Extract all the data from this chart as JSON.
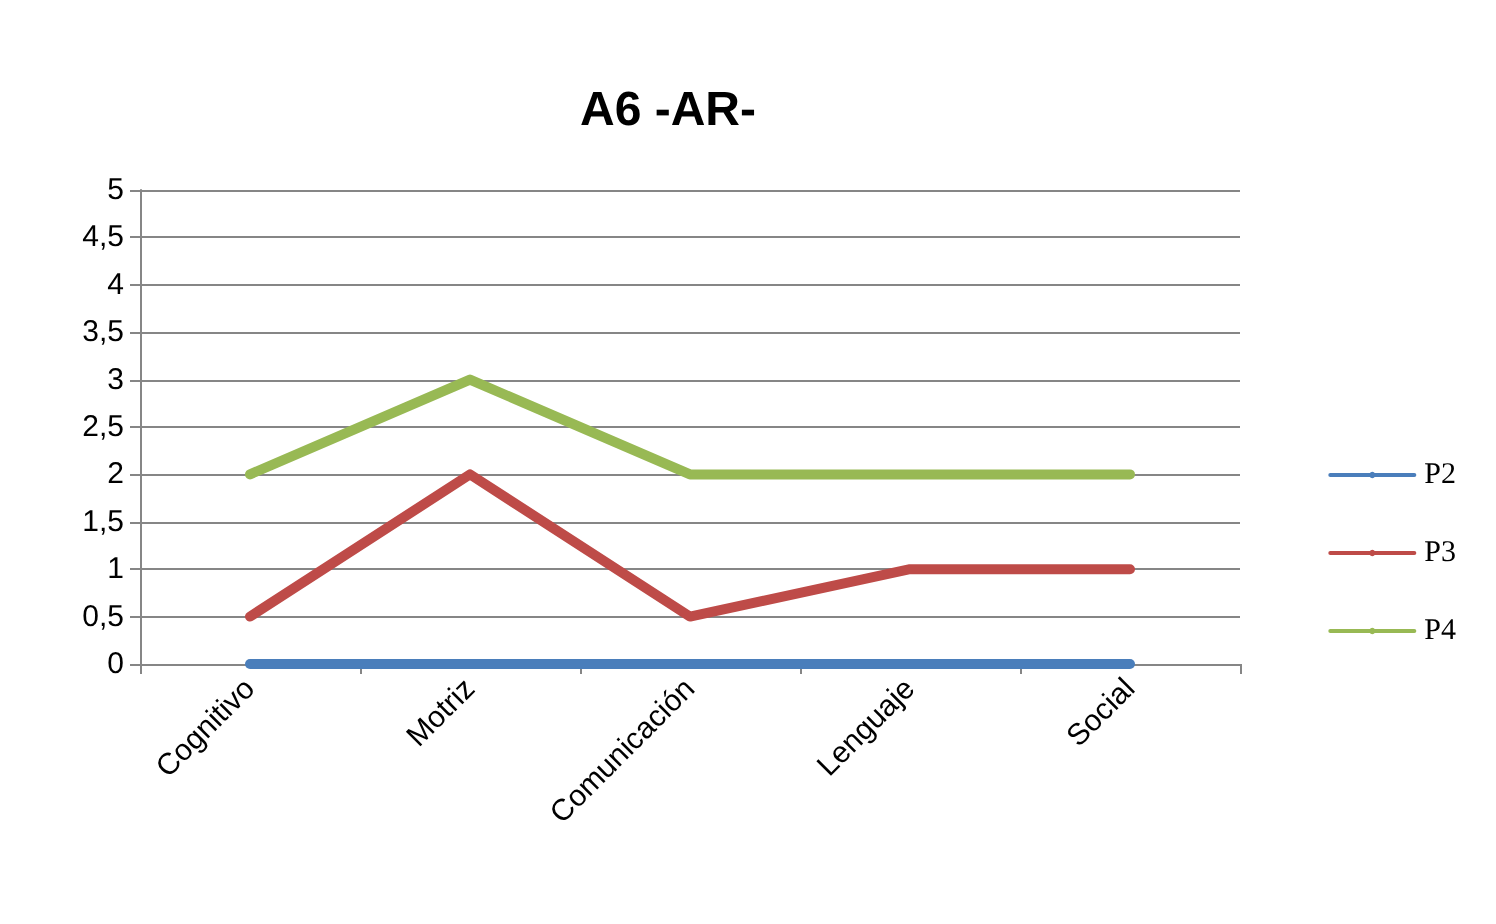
{
  "chart_data": {
    "type": "line",
    "title": "A6 -AR-",
    "categories": [
      "Cognitivo",
      "Motriz",
      "Comunicación",
      "Lenguaje",
      "Social"
    ],
    "series": [
      {
        "name": "P2",
        "color": "#4a7ebb",
        "values": [
          0,
          0,
          0,
          0,
          0
        ]
      },
      {
        "name": "P3",
        "color": "#be4b48",
        "values": [
          0.5,
          2,
          0.5,
          1,
          1
        ]
      },
      {
        "name": "P4",
        "color": "#98b954",
        "values": [
          2,
          3,
          2,
          2,
          2
        ]
      }
    ],
    "ylim": [
      0,
      5
    ],
    "yticks": [
      0,
      {
        "value": 0.5,
        "label": "0,5"
      },
      1,
      {
        "value": 1.5,
        "label": "1,5"
      },
      2,
      {
        "value": 2.5,
        "label": "2,5"
      },
      3,
      {
        "value": 3.5,
        "label": "3,5"
      },
      4,
      {
        "value": 4.5,
        "label": "4,5"
      },
      5
    ],
    "grid": "y",
    "legend": "right",
    "marker": "none",
    "line_style": "solid"
  }
}
